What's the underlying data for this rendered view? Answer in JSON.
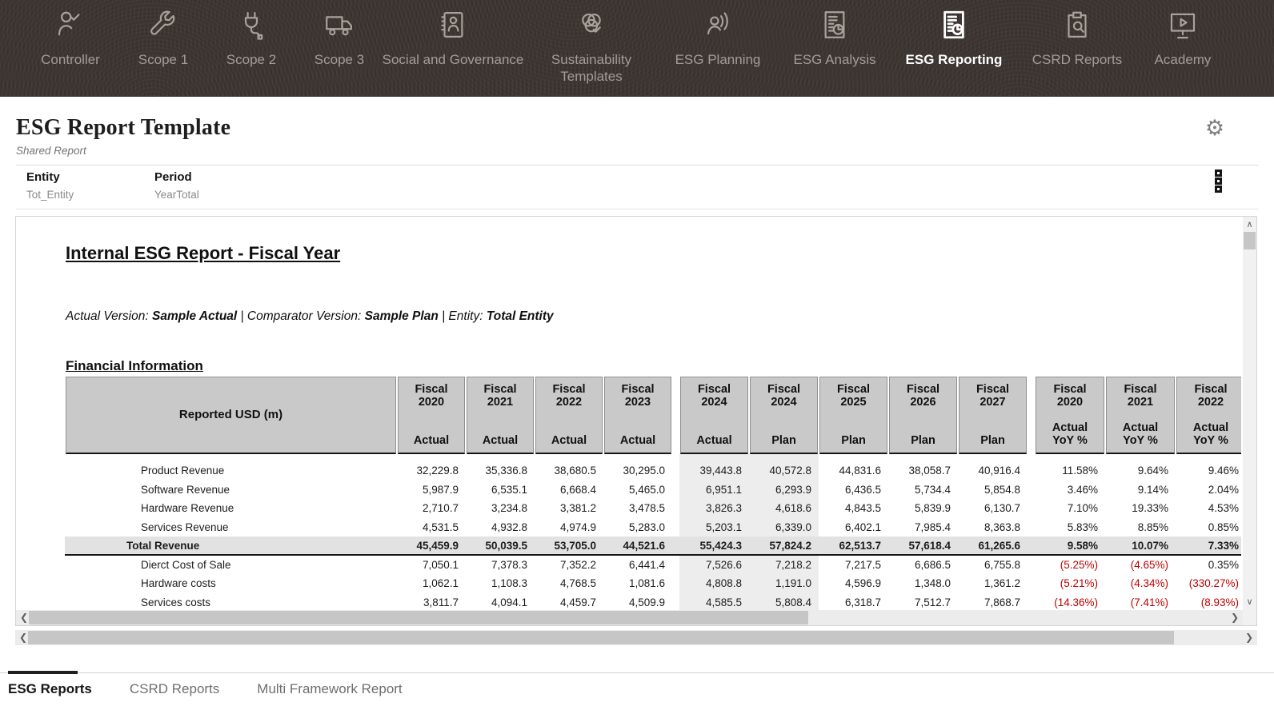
{
  "nav": {
    "items": [
      {
        "label": "Controller",
        "icon": "person-check-icon",
        "active": false
      },
      {
        "label": "Scope 1",
        "icon": "wrench-icon",
        "active": false
      },
      {
        "label": "Scope 2",
        "icon": "plug-icon",
        "active": false
      },
      {
        "label": "Scope 3",
        "icon": "truck-icon",
        "active": false
      },
      {
        "label": "Social and Governance",
        "icon": "contact-card-icon",
        "active": false
      },
      {
        "label": "Sustainability Templates",
        "icon": "venn-check-icon",
        "active": false
      },
      {
        "label": "ESG Planning",
        "icon": "person-broadcast-icon",
        "active": false
      },
      {
        "label": "ESG Analysis",
        "icon": "report-pie-icon",
        "active": false
      },
      {
        "label": "ESG Reporting",
        "icon": "report-pie-icon",
        "active": true
      },
      {
        "label": "CSRD Reports",
        "icon": "clipboard-search-icon",
        "active": false
      },
      {
        "label": "Academy",
        "icon": "screen-play-icon",
        "active": false
      }
    ]
  },
  "header": {
    "title": "ESG Report Template",
    "subtitle": "Shared Report",
    "settings_icon": "gear-icon",
    "gear_glyph": "⚙",
    "pov_menu_icon": "kebab-vertical-icon"
  },
  "pov": {
    "entity_label": "Entity",
    "entity_value": "Tot_Entity",
    "period_label": "Period",
    "period_value": "YearTotal"
  },
  "report": {
    "heading": "Internal ESG Report - Fiscal Year",
    "version_line": [
      {
        "text": "Actual Version: ",
        "bold": false
      },
      {
        "text": "Sample Actual",
        "bold": true
      },
      {
        "text": " | Comparator Version: ",
        "bold": false
      },
      {
        "text": "Sample Plan",
        "bold": true
      },
      {
        "text": " | Entity: ",
        "bold": false
      },
      {
        "text": "Total Entity",
        "bold": true
      }
    ],
    "section_heading": "Financial Information"
  },
  "table": {
    "corner_label": "Reported USD (m)",
    "column_groups": [
      {
        "columns": [
          {
            "year": "Fiscal\n2020",
            "type": "Actual",
            "highlight": false
          },
          {
            "year": "Fiscal\n2021",
            "type": "Actual",
            "highlight": false
          },
          {
            "year": "Fiscal\n2022",
            "type": "Actual",
            "highlight": false
          },
          {
            "year": "Fiscal\n2023",
            "type": "Actual",
            "highlight": false
          }
        ]
      },
      {
        "columns": [
          {
            "year": "Fiscal\n2024",
            "type": "Actual",
            "highlight": true
          },
          {
            "year": "Fiscal\n2024",
            "type": "Plan",
            "highlight": true
          },
          {
            "year": "Fiscal\n2025",
            "type": "Plan",
            "highlight": false
          },
          {
            "year": "Fiscal\n2026",
            "type": "Plan",
            "highlight": false
          },
          {
            "year": "Fiscal\n2027",
            "type": "Plan",
            "highlight": false
          }
        ]
      },
      {
        "columns": [
          {
            "year": "Fiscal\n2020",
            "type": "Actual\nYoY %",
            "highlight": false
          },
          {
            "year": "Fiscal\n2021",
            "type": "Actual\nYoY %",
            "highlight": false
          },
          {
            "year": "Fiscal\n2022",
            "type": "Actual\nYoY %",
            "highlight": false
          }
        ]
      }
    ],
    "rows": [
      {
        "label": "Product Revenue",
        "level": 2,
        "bold": false,
        "total": false,
        "values": [
          "32,229.8",
          "35,336.8",
          "38,680.5",
          "30,295.0",
          "39,443.8",
          "40,572.8",
          "44,831.6",
          "38,058.7",
          "40,916.4",
          "11.58%",
          "9.64%",
          "9.46%"
        ]
      },
      {
        "label": "Software Revenue",
        "level": 2,
        "bold": false,
        "total": false,
        "values": [
          "5,987.9",
          "6,535.1",
          "6,668.4",
          "5,465.0",
          "6,951.1",
          "6,293.9",
          "6,436.5",
          "5,734.4",
          "5,854.8",
          "3.46%",
          "9.14%",
          "2.04%"
        ]
      },
      {
        "label": "Hardware Revenue",
        "level": 2,
        "bold": false,
        "total": false,
        "values": [
          "2,710.7",
          "3,234.8",
          "3,381.2",
          "3,478.5",
          "3,826.3",
          "4,618.6",
          "4,843.5",
          "5,839.9",
          "6,130.7",
          "7.10%",
          "19.33%",
          "4.53%"
        ]
      },
      {
        "label": "Services Revenue",
        "level": 2,
        "bold": false,
        "total": false,
        "values": [
          "4,531.5",
          "4,932.8",
          "4,974.9",
          "5,283.0",
          "5,203.1",
          "6,339.0",
          "6,402.1",
          "7,985.4",
          "8,363.8",
          "5.83%",
          "8.85%",
          "0.85%"
        ]
      },
      {
        "label": "Total Revenue",
        "level": 1,
        "bold": true,
        "total": true,
        "values": [
          "45,459.9",
          "50,039.5",
          "53,705.0",
          "44,521.6",
          "55,424.3",
          "57,824.2",
          "62,513.7",
          "57,618.4",
          "61,265.6",
          "9.58%",
          "10.07%",
          "7.33%"
        ]
      },
      {
        "label": "Dierct Cost of Sale",
        "level": 2,
        "bold": false,
        "total": false,
        "values": [
          "7,050.1",
          "7,378.3",
          "7,352.2",
          "6,441.4",
          "7,526.6",
          "7,218.2",
          "7,217.5",
          "6,686.5",
          "6,755.8",
          "(5.25%)",
          "(4.65%)",
          "0.35%"
        ]
      },
      {
        "label": "Hardware costs",
        "level": 2,
        "bold": false,
        "total": false,
        "values": [
          "1,062.1",
          "1,108.3",
          "4,768.5",
          "1,081.6",
          "4,808.8",
          "1,191.0",
          "4,596.9",
          "1,348.0",
          "1,361.2",
          "(5.21%)",
          "(4.34%)",
          "(330.27%)"
        ]
      },
      {
        "label": "Services costs",
        "level": 2,
        "bold": false,
        "total": false,
        "values": [
          "3,811.7",
          "4,094.1",
          "4,459.7",
          "4,509.9",
          "4,585.5",
          "5,808.4",
          "6,318.7",
          "7,512.7",
          "7,868.7",
          "(14.36%)",
          "(7.41%)",
          "(8.93%)"
        ]
      }
    ]
  },
  "scrollbars": {
    "up_arrow": "∧",
    "down_arrow": "∨",
    "left_arrow": "❮",
    "right_arrow": "❯"
  },
  "tabs": {
    "items": [
      {
        "label": "ESG Reports",
        "active": true
      },
      {
        "label": "CSRD Reports",
        "active": false
      },
      {
        "label": "Multi Framework Report",
        "active": false
      }
    ]
  },
  "colors": {
    "nav_background": "#38312d",
    "nav_label": "#a39c96",
    "nav_active": "#ffffff",
    "table_header_bg": "#c9c9c9",
    "total_row_bg": "#e2e2e2",
    "highlight_col_bg": "#ededed",
    "negative_value": "#c00000",
    "tab_active_indicator": "#1e1e1e"
  }
}
